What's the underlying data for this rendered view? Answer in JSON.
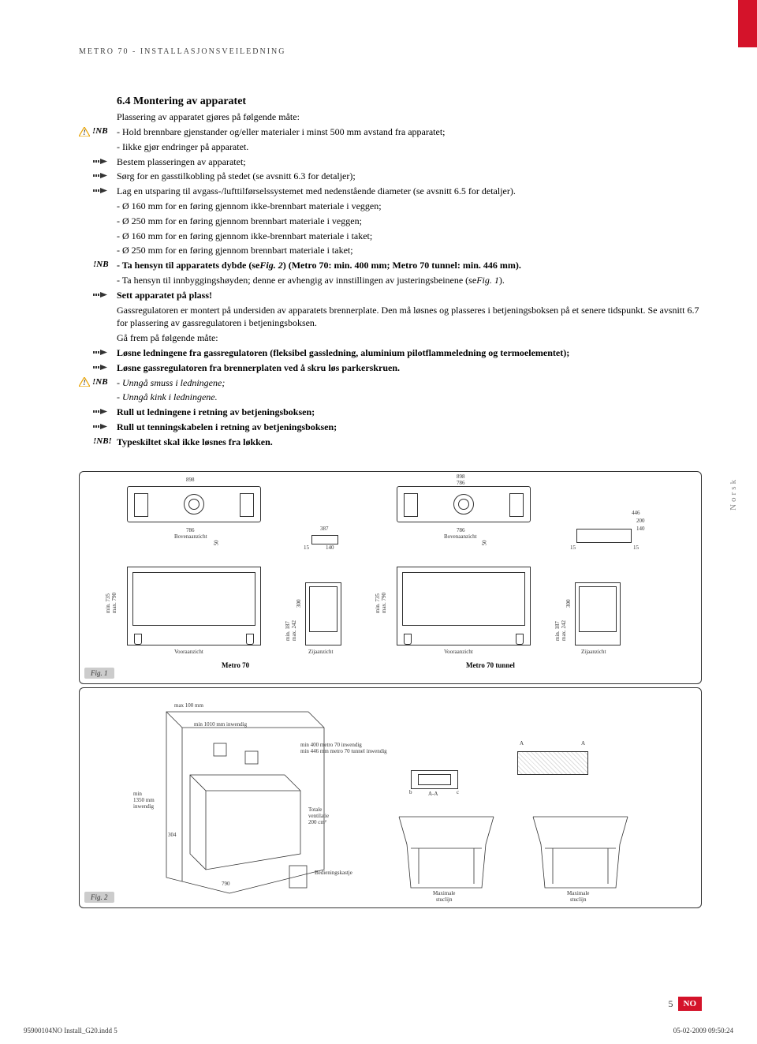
{
  "header": "Metro 70 - installasjonsveiledning",
  "section_number": "6.4",
  "section_title": "Montering av apparatet",
  "intro": "Plassering av apparatet gjøres på følgende måte:",
  "lines": [
    {
      "marker": "nb-warn",
      "text": "- Hold brennbare gjenstander og/eller materialer i minst 500 mm avstand fra apparatet;"
    },
    {
      "marker": "none",
      "text": "- Iikke gjør endringer på apparatet."
    },
    {
      "marker": "arrow",
      "text": "Bestem plasseringen av apparatet;"
    },
    {
      "marker": "arrow",
      "text": "Sørg for en gasstilkobling på stedet (se avsnitt 6.3 for detaljer);"
    },
    {
      "marker": "arrow",
      "text": "Lag en utsparing til avgass-/lufttilførselssystemet med nedenstående diameter (se avsnitt 6.5 for detaljer)."
    },
    {
      "marker": "none",
      "text": "- Ø 160 mm for en føring gjennom ikke-brennbart materiale i veggen;"
    },
    {
      "marker": "none",
      "text": "- Ø 250 mm for en føring gjennom brennbart materiale i veggen;"
    },
    {
      "marker": "none",
      "text": "- Ø 160 mm for en føring gjennom ikke-brennbart materiale i taket;"
    },
    {
      "marker": "none",
      "text": "- Ø 250 mm for en føring gjennom brennbart materiale i taket;"
    },
    {
      "marker": "nb-plain",
      "html": "- Ta hensyn til apparatets dybde (se<span class='fig-ref'>Fig. 2</span>) (Metro 70: min. 400 mm; Metro 70 tunnel: min. 446 mm).",
      "bold": true
    },
    {
      "marker": "none",
      "html": "- Ta hensyn til innbyggingshøyden; denne er avhengig av innstillingen av justeringsbeinene (se<span class='fig-ref'>Fig. 1</span>)."
    },
    {
      "marker": "arrow",
      "text": "Sett apparatet på plass!",
      "bold": true
    },
    {
      "marker": "none",
      "text": "Gassregulatoren er montert på undersiden av apparatets brennerplate. Den må løsnes og plasseres i betjeningsboksen på et senere tidspunkt. Se avsnitt 6.7 for plassering av gassregulatoren i betjeningsboksen."
    },
    {
      "marker": "none",
      "text": "Gå frem på følgende måte:"
    },
    {
      "marker": "arrow",
      "text": "Løsne ledningene fra gassregulatoren (fleksibel gassledning, aluminium pilotflammeledning og termoelementet);",
      "bold": true
    },
    {
      "marker": "arrow",
      "text": "Løsne gassregulatoren fra brennerplaten ved å skru løs parkerskruen.",
      "bold": true
    },
    {
      "marker": "nb-warn",
      "text": "- Unngå smuss i ledningene;",
      "italic": true
    },
    {
      "marker": "none",
      "text": "- Unngå kink i ledningene.",
      "italic": true
    },
    {
      "marker": "arrow",
      "text": "Rull ut ledningene i retning av betjeningsboksen;",
      "bold": true
    },
    {
      "marker": "arrow",
      "text": "Rull ut tenningskabelen i retning av betjeningsboksen;",
      "bold": true
    },
    {
      "marker": "nbexcl",
      "text": "Typeskiltet skal ikke løsnes fra løkken.",
      "bold": true
    }
  ],
  "figures": {
    "fig1_label": "Fig. 1",
    "fig2_label": "Fig. 2",
    "norsk": "Norsk",
    "model_left": "Metro 70",
    "model_right": "Metro 70 tunnel",
    "dims": {
      "w898": "898",
      "w786": "786",
      "w387": "387",
      "w140": "140",
      "w15": "15",
      "w50": "50",
      "w446": "446",
      "w200": "200",
      "h_min735": "min. 735",
      "h_max790": "max. 790",
      "h_min187": "min. 187",
      "h_max242": "max. 242",
      "h300": "300"
    },
    "view_top": "Bovenaanzicht",
    "view_front": "Vooraanzicht",
    "view_side": "Zijaanzicht",
    "fig2": {
      "max100": "max 100 mm",
      "min1010": "min 1010 mm inwendig",
      "min400": "min 400 metro 70 inwendig",
      "min446": "min 446 mm metro 70 tunnel inwendig",
      "min1350": "min\n1350 mm\ninwendig",
      "d304": "304",
      "d790": "790",
      "vent": "Totale\nventilatie\n200 cm²",
      "bed": "Bedieningskastje",
      "aa": "A-A",
      "a": "A",
      "b": "b",
      "c": "c",
      "max_stuc": "Maximale\nstuclijn"
    }
  },
  "footer": {
    "page": "5",
    "lang": "NO"
  },
  "print": {
    "file": "95900104NO Install_G20.indd   5",
    "date": "05-02-2009   09:50:24"
  },
  "colors": {
    "accent": "#d4132a",
    "border": "#333333"
  }
}
